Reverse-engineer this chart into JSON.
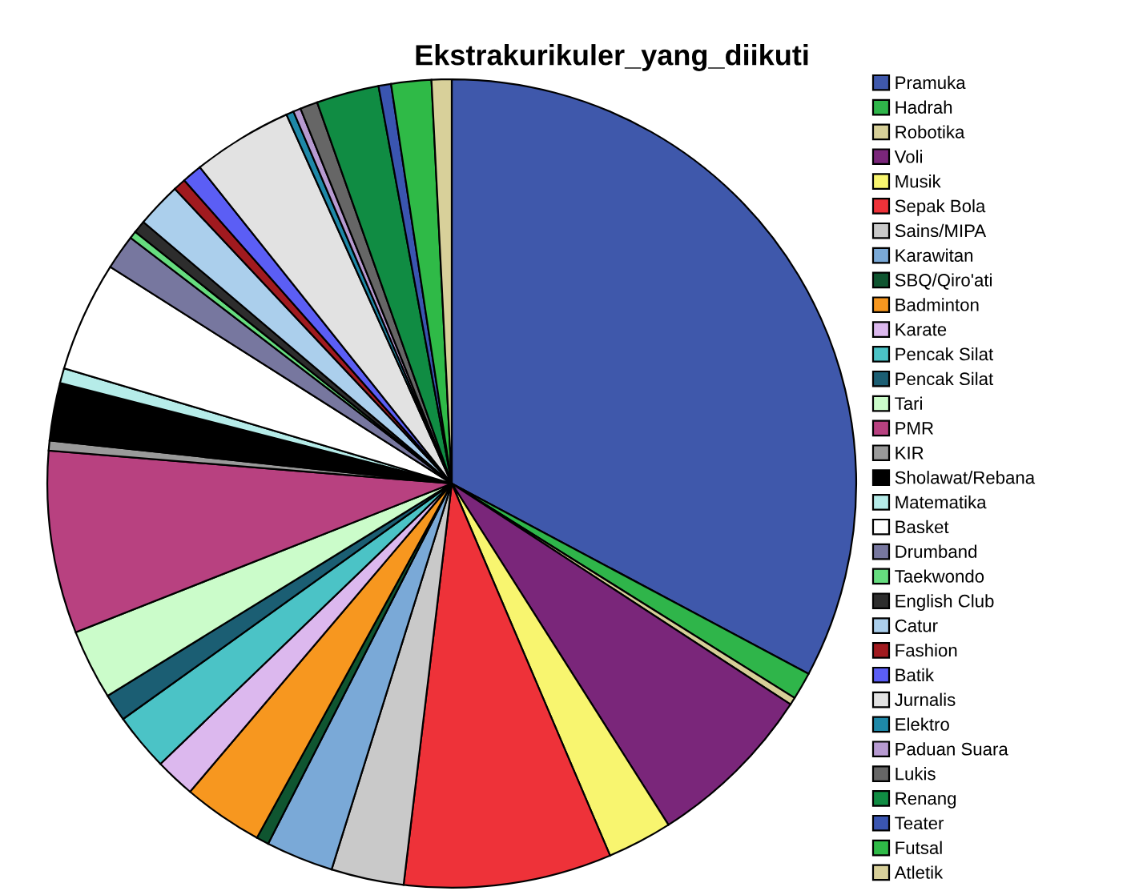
{
  "chart_data": {
    "type": "pie",
    "title": "Ekstrakurikuler_yang_diikuti",
    "legend": "right",
    "categories": [
      "Pramuka",
      "Hadrah",
      "Robotika",
      "Voli",
      "Musik",
      "Sepak Bola",
      "Sains/MIPA",
      "Karawitan",
      "SBQ/Qiro'ati",
      "Badminton",
      "Karate",
      "Pencak Silat",
      "Pencak Silat",
      "Tari",
      "PMR",
      "KIR",
      "Sholawat/Rebana",
      "Matematika",
      "Basket",
      "Drumband",
      "Taekwondo",
      "English Club",
      "Catur",
      "Fashion",
      "Batik",
      "Jurnalis",
      "Elektro",
      "Paduan Suara",
      "Lukis",
      "Renang",
      "Teater",
      "Futsal",
      "Atletik"
    ],
    "values": [
      32.8,
      1.1,
      0.3,
      6.8,
      2.6,
      8.3,
      2.9,
      2.7,
      0.5,
      3.2,
      1.6,
      2.3,
      1.1,
      2.8,
      7.3,
      0.4,
      2.3,
      0.6,
      4.4,
      1.4,
      0.3,
      0.5,
      1.8,
      0.5,
      0.8,
      4.0,
      0.3,
      0.3,
      0.7,
      2.5,
      0.5,
      1.6,
      0.8
    ],
    "colors": [
      "#3f58ab",
      "#2fb54a",
      "#d6cf98",
      "#7a267a",
      "#f8f56f",
      "#ee3239",
      "#c9c9c9",
      "#7aa9d7",
      "#0f5530",
      "#f7971f",
      "#dcb8ee",
      "#4bc3c6",
      "#1b5e73",
      "#cbfcca",
      "#b84180",
      "#9a9a9a",
      "#000000",
      "#b6ece9",
      "#ffffff",
      "#77779f",
      "#66dd7f",
      "#2d2d2d",
      "#abcfec",
      "#a11a1f",
      "#5b5ef5",
      "#e2e2e2",
      "#1e88a8",
      "#b79ad1",
      "#666666",
      "#108c43",
      "#3a55b0",
      "#2fba47",
      "#d8d09a"
    ]
  }
}
